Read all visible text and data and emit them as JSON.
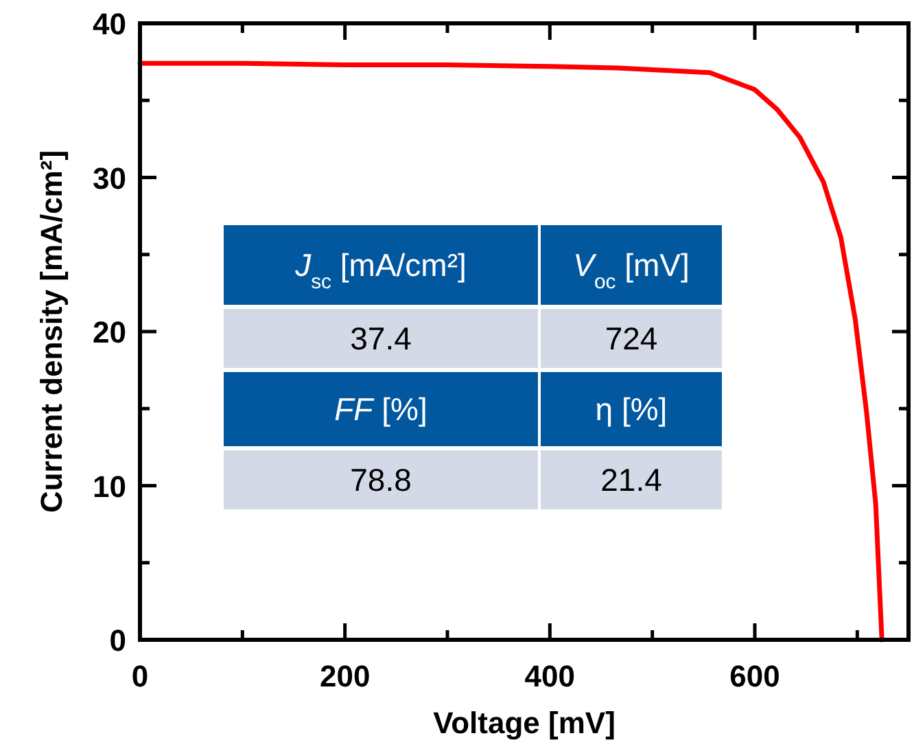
{
  "chart_data": {
    "type": "line",
    "xlabel": "Voltage [mV]",
    "ylabel": "Current density [mA/cm²]",
    "x": [
      0,
      100,
      200,
      300,
      400,
      466,
      556,
      600,
      622,
      644,
      667,
      684,
      698,
      709,
      718,
      724
    ],
    "series": [
      {
        "color": "#ff0000",
        "values": [
          37.4,
          37.4,
          37.3,
          37.3,
          37.2,
          37.1,
          36.8,
          35.7,
          34.4,
          32.6,
          29.7,
          26.1,
          20.8,
          14.8,
          8.8,
          0
        ]
      }
    ],
    "xlim": [
      0,
      750
    ],
    "ylim": [
      0,
      40
    ],
    "xticks": [
      0,
      {
        "value": 100,
        "label": null
      },
      200,
      {
        "value": 300,
        "label": null
      },
      400,
      {
        "value": 500,
        "label": null
      },
      600,
      {
        "value": 700,
        "label": null
      }
    ],
    "yticks": [
      0,
      {
        "value": 5,
        "label": null
      },
      10,
      {
        "value": 15,
        "label": null
      },
      20,
      {
        "value": 25,
        "label": null
      },
      30,
      {
        "value": 35,
        "label": null
      },
      40
    ],
    "grid": false,
    "marker": "none",
    "line_style": "solid",
    "annotations": [
      "*J*$_{sc}$ [mA/cm²]",
      "*V*$_{oc}$ [mV]",
      "37.4",
      "724",
      "*FF* [%]",
      "η [%]",
      "78.8",
      "21.4"
    ]
  }
}
